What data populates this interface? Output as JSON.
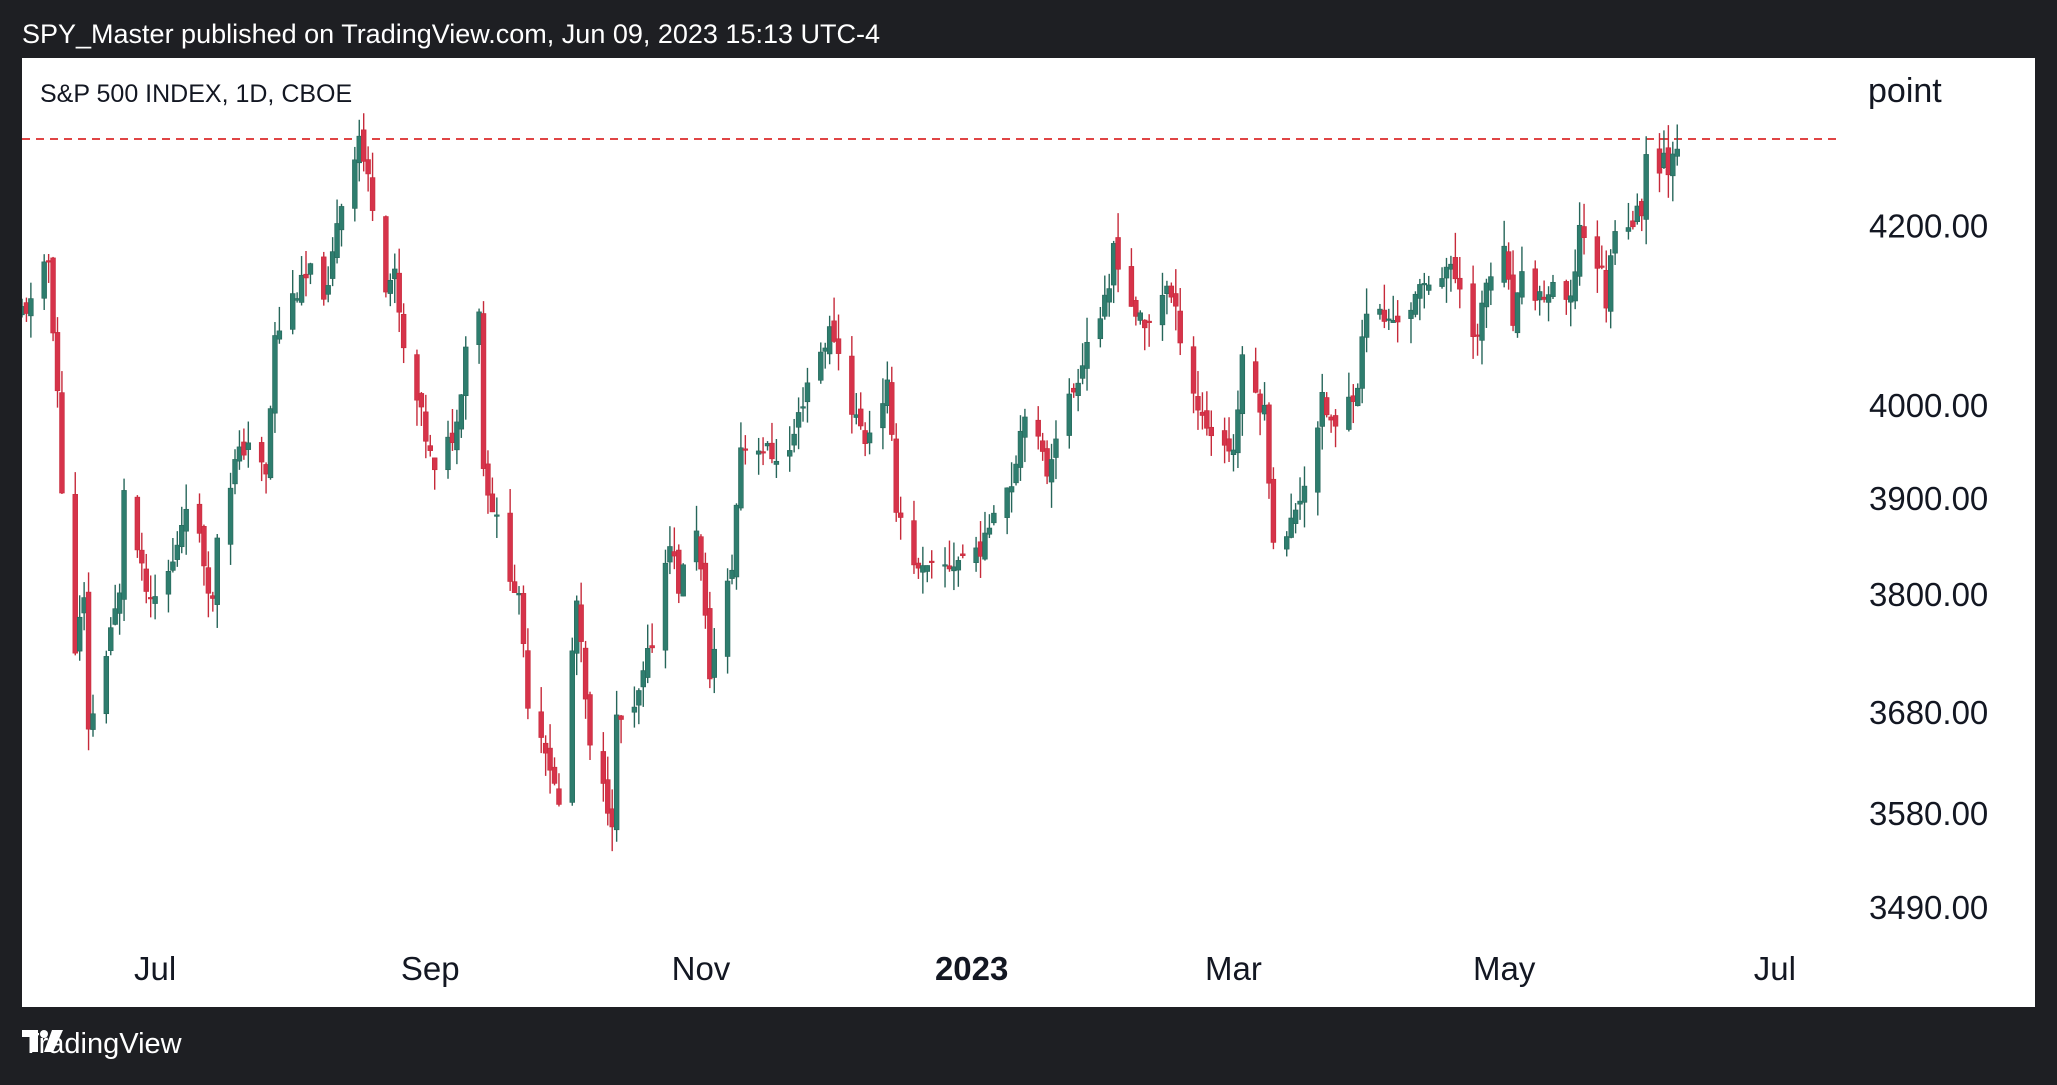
{
  "header": {
    "publish_line": "SPY_Master published on TradingView.com, Jun 09, 2023 15:13 UTC-4"
  },
  "chart_panel": {
    "symbol_line": "S&P 500 INDEX, 1D, CBOE",
    "unit_label": "point"
  },
  "footer": {
    "brand": "TradingView",
    "logo_icon": "tradingview-logo-icon"
  },
  "colors": {
    "up": "#26665a",
    "up_fill": "#2e7d6e",
    "down": "#c62a3a",
    "down_fill": "#d6334a",
    "level_line": "#e04545",
    "background": "#1e1f23"
  },
  "chart_data": {
    "type": "candlestick",
    "title": "S&P 500 INDEX, 1D, CBOE",
    "ylabel": "point",
    "y_scale": "log",
    "ylim": [
      3470,
      4360
    ],
    "y_ticks": [
      {
        "value": 4200,
        "label": "4200.00"
      },
      {
        "value": 4000,
        "label": "4000.00"
      },
      {
        "value": 3900,
        "label": "3900.00"
      },
      {
        "value": 3800,
        "label": "3800.00"
      },
      {
        "value": 3680,
        "label": "3680.00"
      },
      {
        "value": 3580,
        "label": "3580.00"
      },
      {
        "value": 3490,
        "label": "3490.00"
      }
    ],
    "x_ticks": [
      {
        "date": "2022-07-01",
        "label": "Jul",
        "bold": false
      },
      {
        "date": "2022-09-01",
        "label": "Sep",
        "bold": false
      },
      {
        "date": "2022-11-01",
        "label": "Nov",
        "bold": false
      },
      {
        "date": "2023-01-01",
        "label": "2023",
        "bold": true
      },
      {
        "date": "2023-03-01",
        "label": "Mar",
        "bold": false
      },
      {
        "date": "2023-05-01",
        "label": "May",
        "bold": false
      },
      {
        "date": "2023-07-01",
        "label": "Jul",
        "bold": false
      }
    ],
    "x_range": [
      "2022-06-01",
      "2023-07-15"
    ],
    "horizontal_level": 4300,
    "close_points": [
      [
        "2022-06-01",
        4105
      ],
      [
        "2022-06-03",
        4110
      ],
      [
        "2022-06-07",
        4160
      ],
      [
        "2022-06-09",
        4017
      ],
      [
        "2022-06-10",
        3900
      ],
      [
        "2022-06-13",
        3749
      ],
      [
        "2022-06-15",
        3790
      ],
      [
        "2022-06-16",
        3667
      ],
      [
        "2022-06-17",
        3675
      ],
      [
        "2022-06-21",
        3765
      ],
      [
        "2022-06-23",
        3796
      ],
      [
        "2022-06-24",
        3912
      ],
      [
        "2022-06-28",
        3821
      ],
      [
        "2022-06-30",
        3785
      ],
      [
        "2022-07-05",
        3831
      ],
      [
        "2022-07-08",
        3899
      ],
      [
        "2022-07-11",
        3855
      ],
      [
        "2022-07-14",
        3790
      ],
      [
        "2022-07-15",
        3863
      ],
      [
        "2022-07-19",
        3937
      ],
      [
        "2022-07-22",
        3962
      ],
      [
        "2022-07-26",
        3921
      ],
      [
        "2022-07-28",
        4072
      ],
      [
        "2022-08-01",
        4119
      ],
      [
        "2022-08-05",
        4145
      ],
      [
        "2022-08-09",
        4122
      ],
      [
        "2022-08-11",
        4207
      ],
      [
        "2022-08-16",
        4305
      ],
      [
        "2022-08-17",
        4275
      ],
      [
        "2022-08-19",
        4228
      ],
      [
        "2022-08-22",
        4137
      ],
      [
        "2022-08-24",
        4141
      ],
      [
        "2022-08-26",
        4057
      ],
      [
        "2022-08-30",
        3986
      ],
      [
        "2022-09-02",
        3924
      ],
      [
        "2022-09-07",
        3979
      ],
      [
        "2022-09-09",
        4067
      ],
      [
        "2022-09-12",
        4110
      ],
      [
        "2022-09-13",
        3932
      ],
      [
        "2022-09-16",
        3873
      ],
      [
        "2022-09-21",
        3790
      ],
      [
        "2022-09-23",
        3693
      ],
      [
        "2022-09-27",
        3647
      ],
      [
        "2022-09-30",
        3586
      ],
      [
        "2022-10-04",
        3791
      ],
      [
        "2022-10-07",
        3640
      ],
      [
        "2022-10-12",
        3577
      ],
      [
        "2022-10-13",
        3669
      ],
      [
        "2022-10-17",
        3677
      ],
      [
        "2022-10-21",
        3752
      ],
      [
        "2022-10-25",
        3859
      ],
      [
        "2022-10-27",
        3807
      ],
      [
        "2022-10-31",
        3872
      ],
      [
        "2022-11-03",
        3720
      ],
      [
        "2022-11-08",
        3828
      ],
      [
        "2022-11-10",
        3956
      ],
      [
        "2022-11-14",
        3957
      ],
      [
        "2022-11-17",
        3946
      ],
      [
        "2022-11-21",
        3949
      ],
      [
        "2022-11-25",
        4026
      ],
      [
        "2022-11-30",
        4080
      ],
      [
        "2022-12-01",
        4076
      ],
      [
        "2022-12-05",
        3998
      ],
      [
        "2022-12-08",
        3963
      ],
      [
        "2022-12-13",
        4019
      ],
      [
        "2022-12-15",
        3895
      ],
      [
        "2022-12-20",
        3821
      ],
      [
        "2022-12-22",
        3822
      ],
      [
        "2022-12-27",
        3829
      ],
      [
        "2022-12-30",
        3839
      ],
      [
        "2023-01-04",
        3852
      ],
      [
        "2023-01-06",
        3895
      ],
      [
        "2023-01-10",
        3919
      ],
      [
        "2023-01-13",
        3999
      ],
      [
        "2023-01-18",
        3928
      ],
      [
        "2023-01-20",
        3972
      ],
      [
        "2023-01-24",
        4016
      ],
      [
        "2023-01-27",
        4070
      ],
      [
        "2023-02-01",
        4119
      ],
      [
        "2023-02-02",
        4179
      ],
      [
        "2023-02-06",
        4111
      ],
      [
        "2023-02-09",
        4081
      ],
      [
        "2023-02-14",
        4136
      ],
      [
        "2023-02-17",
        4079
      ],
      [
        "2023-02-21",
        3997
      ],
      [
        "2023-02-24",
        3970
      ],
      [
        "2023-03-01",
        3951
      ],
      [
        "2023-03-03",
        4045
      ],
      [
        "2023-03-08",
        3992
      ],
      [
        "2023-03-10",
        3861
      ],
      [
        "2023-03-13",
        3855
      ],
      [
        "2023-03-15",
        3891
      ],
      [
        "2023-03-17",
        3917
      ],
      [
        "2023-03-21",
        4002
      ],
      [
        "2023-03-24",
        3971
      ],
      [
        "2023-03-29",
        4027
      ],
      [
        "2023-03-31",
        4109
      ],
      [
        "2023-04-05",
        4090
      ],
      [
        "2023-04-10",
        4109
      ],
      [
        "2023-04-14",
        4137
      ],
      [
        "2023-04-18",
        4154
      ],
      [
        "2023-04-21",
        4133
      ],
      [
        "2023-04-25",
        4071
      ],
      [
        "2023-04-27",
        4135
      ],
      [
        "2023-05-01",
        4167
      ],
      [
        "2023-05-03",
        4090
      ],
      [
        "2023-05-05",
        4136
      ],
      [
        "2023-05-09",
        4119
      ],
      [
        "2023-05-12",
        4124
      ],
      [
        "2023-05-16",
        4109
      ],
      [
        "2023-05-18",
        4198
      ],
      [
        "2023-05-19",
        4191
      ],
      [
        "2023-05-23",
        4145
      ],
      [
        "2023-05-24",
        4115
      ],
      [
        "2023-05-26",
        4205
      ],
      [
        "2023-05-30",
        4205
      ],
      [
        "2023-06-01",
        4221
      ],
      [
        "2023-06-02",
        4282
      ],
      [
        "2023-06-05",
        4273
      ],
      [
        "2023-06-06",
        4283
      ],
      [
        "2023-06-07",
        4267
      ],
      [
        "2023-06-08",
        4293
      ],
      [
        "2023-06-09",
        4298
      ]
    ]
  }
}
